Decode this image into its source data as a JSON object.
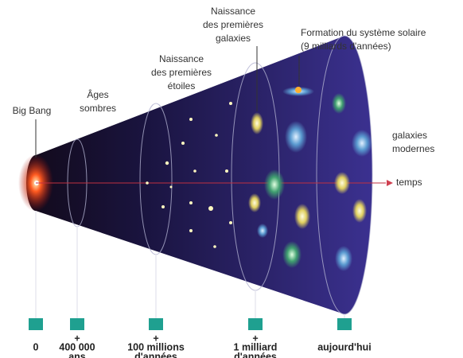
{
  "annotations": {
    "big_bang": [
      "Big Bang"
    ],
    "dark_ages": [
      "Âges",
      "sombres"
    ],
    "first_stars": [
      "Naissance",
      "des premières",
      "étoiles"
    ],
    "first_galaxies": [
      "Naissance",
      "des premières",
      "galaxies"
    ],
    "solar_system": [
      "Formation du système solaire",
      "(9 milliards d'années)"
    ],
    "modern_galaxies": [
      "galaxies",
      "modernes"
    ],
    "time": "temps"
  },
  "timeline": [
    {
      "lines": [
        "0"
      ]
    },
    {
      "plus": "+",
      "lines": [
        "400 000",
        "ans"
      ]
    },
    {
      "plus": "+",
      "lines": [
        "100 millions",
        "d'années"
      ]
    },
    {
      "plus": "+",
      "lines": [
        "1 milliard",
        "d'années"
      ]
    },
    {
      "lines": [
        "aujourd'hui"
      ]
    }
  ]
}
